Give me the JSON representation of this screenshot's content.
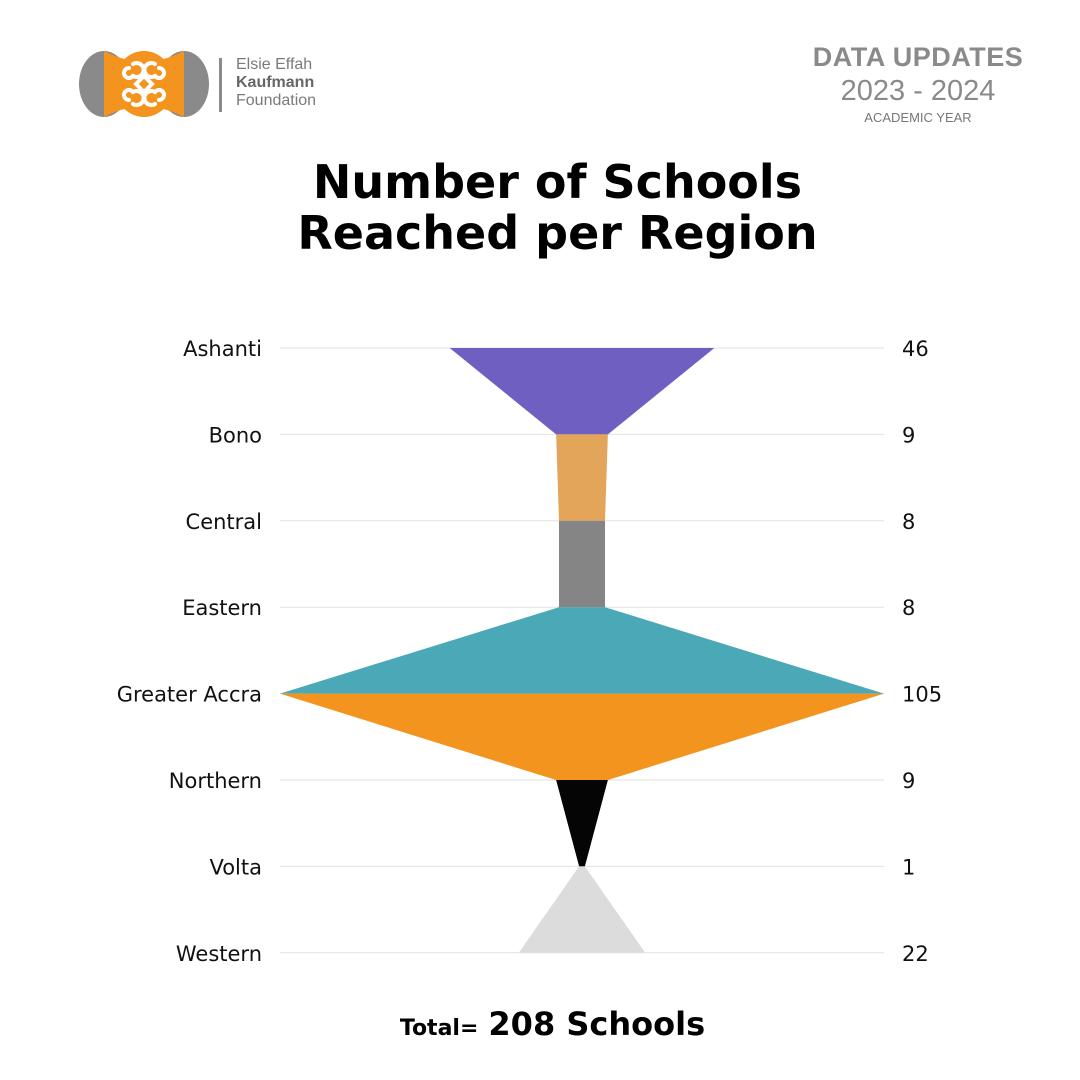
{
  "header": {
    "org_line1": "Elsie Effah",
    "org_line2": "Kaufmann",
    "org_line3": "Foundation",
    "updates_title": "DATA UPDATES",
    "updates_years": "2023 - 2024",
    "updates_sub": "ACADEMIC YEAR"
  },
  "brand": {
    "orange": "#F3941F",
    "grey": "#8A8A8A"
  },
  "chart_data": {
    "type": "funnel",
    "title_line1": "Number of Schools",
    "title_line2": "Reached per Region",
    "categories": [
      "Ashanti",
      "Bono",
      "Central",
      "Eastern",
      "Greater Accra",
      "Northern",
      "Volta",
      "Western"
    ],
    "values": [
      46,
      9,
      8,
      8,
      105,
      9,
      1,
      22
    ],
    "value_labels": [
      "46",
      "9",
      "8",
      "8",
      "105",
      "9",
      "1",
      "22"
    ],
    "colors": [
      "#6F5FC0",
      "#E2A55A",
      "#858585",
      "#4BA8B6",
      "#F3941F",
      "#050505",
      "#DCDCDC",
      "#A42E8A"
    ],
    "max_value": 105,
    "grid": true
  },
  "footer": {
    "total_label": "Total=",
    "total_value": "208 Schools"
  }
}
